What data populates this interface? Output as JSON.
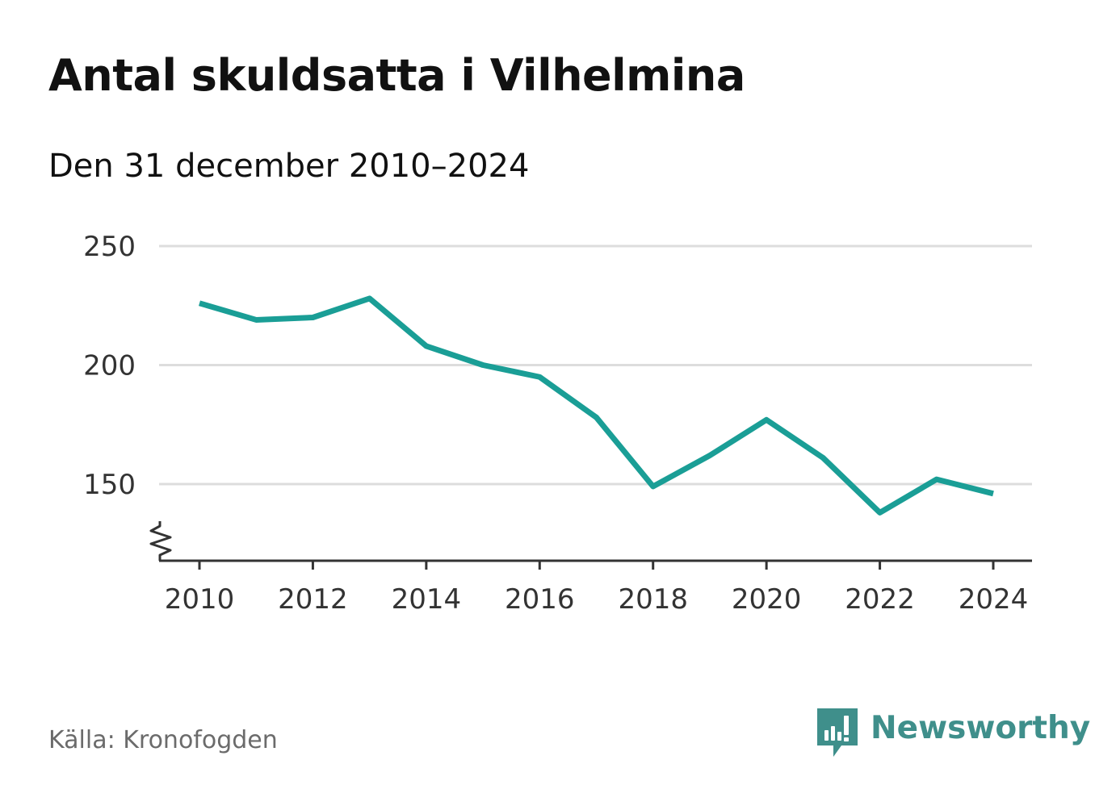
{
  "title": "Antal skuldsatta i Vilhelmina",
  "subtitle": "Den 31 december 2010–2024",
  "source": "Källa: Kronofogden",
  "brand": {
    "name": "Newsworthy",
    "icon": "newsworthy-logo-icon",
    "color": "#3f8f8b"
  },
  "colors": {
    "line": "#1a9e96",
    "grid": "#dddddd",
    "axis": "#333333"
  },
  "chart_data": {
    "type": "line",
    "title": "Antal skuldsatta i Vilhelmina",
    "subtitle": "Den 31 december 2010–2024",
    "x": [
      2010,
      2011,
      2012,
      2013,
      2014,
      2015,
      2016,
      2017,
      2018,
      2019,
      2020,
      2021,
      2022,
      2023,
      2024
    ],
    "series": [
      {
        "values": [
          226,
          219,
          220,
          228,
          208,
          200,
          195,
          178,
          149,
          162,
          177,
          161,
          138,
          152,
          146
        ]
      }
    ],
    "x_ticks": [
      "2010",
      "2012",
      "2014",
      "2016",
      "2018",
      "2020",
      "2022",
      "2024"
    ],
    "y_ticks": [
      "150",
      "200",
      "250"
    ],
    "xlim": [
      2010,
      2024
    ],
    "ylim": [
      120,
      250
    ],
    "y_axis_break": true,
    "grid": "horizontal",
    "xlabel": "",
    "ylabel": ""
  }
}
